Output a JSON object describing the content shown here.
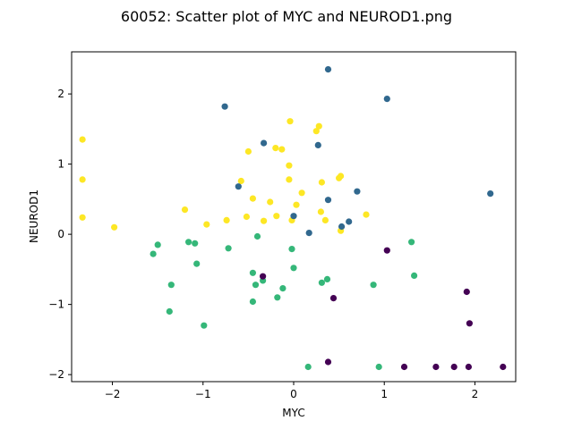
{
  "chart_data": {
    "type": "scatter",
    "title": "60052: Scatter plot of MYC and NEUROD1.png",
    "xlabel": "MYC",
    "ylabel": "NEUROD1",
    "xlim": [
      -2.45,
      2.45
    ],
    "ylim": [
      -2.1,
      2.6
    ],
    "xticks": [
      -2,
      -1,
      0,
      1,
      2
    ],
    "yticks": [
      -2,
      -1,
      0,
      1,
      2
    ],
    "xtick_labels": [
      "−2",
      "−1",
      "0",
      "1",
      "2"
    ],
    "ytick_labels": [
      "−2",
      "−1",
      "0",
      "1",
      "2"
    ],
    "grid": false,
    "legend": "none",
    "colors": {
      "group0": "#440154",
      "group1": "#31688e",
      "group2": "#35b779",
      "group3": "#fde725"
    },
    "series": [
      {
        "color": "#fde725",
        "points": [
          [
            -2.33,
            1.35
          ],
          [
            -2.33,
            0.78
          ],
          [
            -2.33,
            0.24
          ],
          [
            -1.98,
            0.1
          ],
          [
            -1.2,
            0.35
          ],
          [
            -0.96,
            0.14
          ],
          [
            -0.74,
            0.2
          ],
          [
            -0.58,
            0.76
          ],
          [
            -0.52,
            0.25
          ],
          [
            -0.5,
            1.18
          ],
          [
            -0.45,
            0.51
          ],
          [
            -0.33,
            0.19
          ],
          [
            -0.26,
            0.46
          ],
          [
            -0.2,
            1.23
          ],
          [
            -0.19,
            0.26
          ],
          [
            -0.13,
            1.21
          ],
          [
            -0.05,
            0.98
          ],
          [
            -0.05,
            0.78
          ],
          [
            -0.04,
            1.61
          ],
          [
            -0.02,
            0.2
          ],
          [
            0.03,
            0.42
          ],
          [
            0.09,
            0.59
          ],
          [
            0.25,
            1.47
          ],
          [
            0.28,
            1.54
          ],
          [
            0.3,
            0.32
          ],
          [
            0.31,
            0.74
          ],
          [
            0.35,
            0.2
          ],
          [
            0.5,
            0.8
          ],
          [
            0.52,
            0.83
          ],
          [
            0.52,
            0.05
          ],
          [
            0.8,
            0.28
          ]
        ]
      },
      {
        "color": "#31688e",
        "points": [
          [
            -0.76,
            1.82
          ],
          [
            -0.61,
            0.68
          ],
          [
            -0.33,
            1.3
          ],
          [
            0.0,
            0.26
          ],
          [
            0.17,
            0.02
          ],
          [
            0.27,
            1.27
          ],
          [
            0.38,
            2.35
          ],
          [
            0.38,
            0.49
          ],
          [
            0.53,
            0.11
          ],
          [
            0.61,
            0.18
          ],
          [
            0.7,
            0.61
          ],
          [
            1.03,
            1.93
          ],
          [
            2.17,
            0.58
          ]
        ]
      },
      {
        "color": "#35b779",
        "points": [
          [
            -1.55,
            -0.28
          ],
          [
            -1.5,
            -0.15
          ],
          [
            -1.37,
            -1.1
          ],
          [
            -1.35,
            -0.72
          ],
          [
            -1.16,
            -0.11
          ],
          [
            -1.09,
            -0.13
          ],
          [
            -1.07,
            -0.42
          ],
          [
            -0.99,
            -1.3
          ],
          [
            -0.72,
            -0.2
          ],
          [
            -0.45,
            -0.55
          ],
          [
            -0.45,
            -0.96
          ],
          [
            -0.42,
            -0.72
          ],
          [
            -0.4,
            -0.03
          ],
          [
            -0.34,
            -0.66
          ],
          [
            -0.18,
            -0.9
          ],
          [
            -0.12,
            -0.77
          ],
          [
            -0.02,
            -0.21
          ],
          [
            0.0,
            -0.48
          ],
          [
            0.16,
            -1.89
          ],
          [
            0.31,
            -0.69
          ],
          [
            0.37,
            -0.64
          ],
          [
            0.88,
            -0.72
          ],
          [
            0.94,
            -1.89
          ],
          [
            1.3,
            -0.11
          ],
          [
            1.33,
            -0.59
          ]
        ]
      },
      {
        "color": "#440154",
        "points": [
          [
            -0.34,
            -0.6
          ],
          [
            0.38,
            -1.82
          ],
          [
            0.44,
            -0.91
          ],
          [
            1.03,
            -0.23
          ],
          [
            1.22,
            -1.89
          ],
          [
            1.57,
            -1.89
          ],
          [
            1.77,
            -1.89
          ],
          [
            1.91,
            -0.82
          ],
          [
            1.93,
            -1.89
          ],
          [
            1.94,
            -1.27
          ],
          [
            2.31,
            -1.89
          ]
        ]
      }
    ]
  }
}
